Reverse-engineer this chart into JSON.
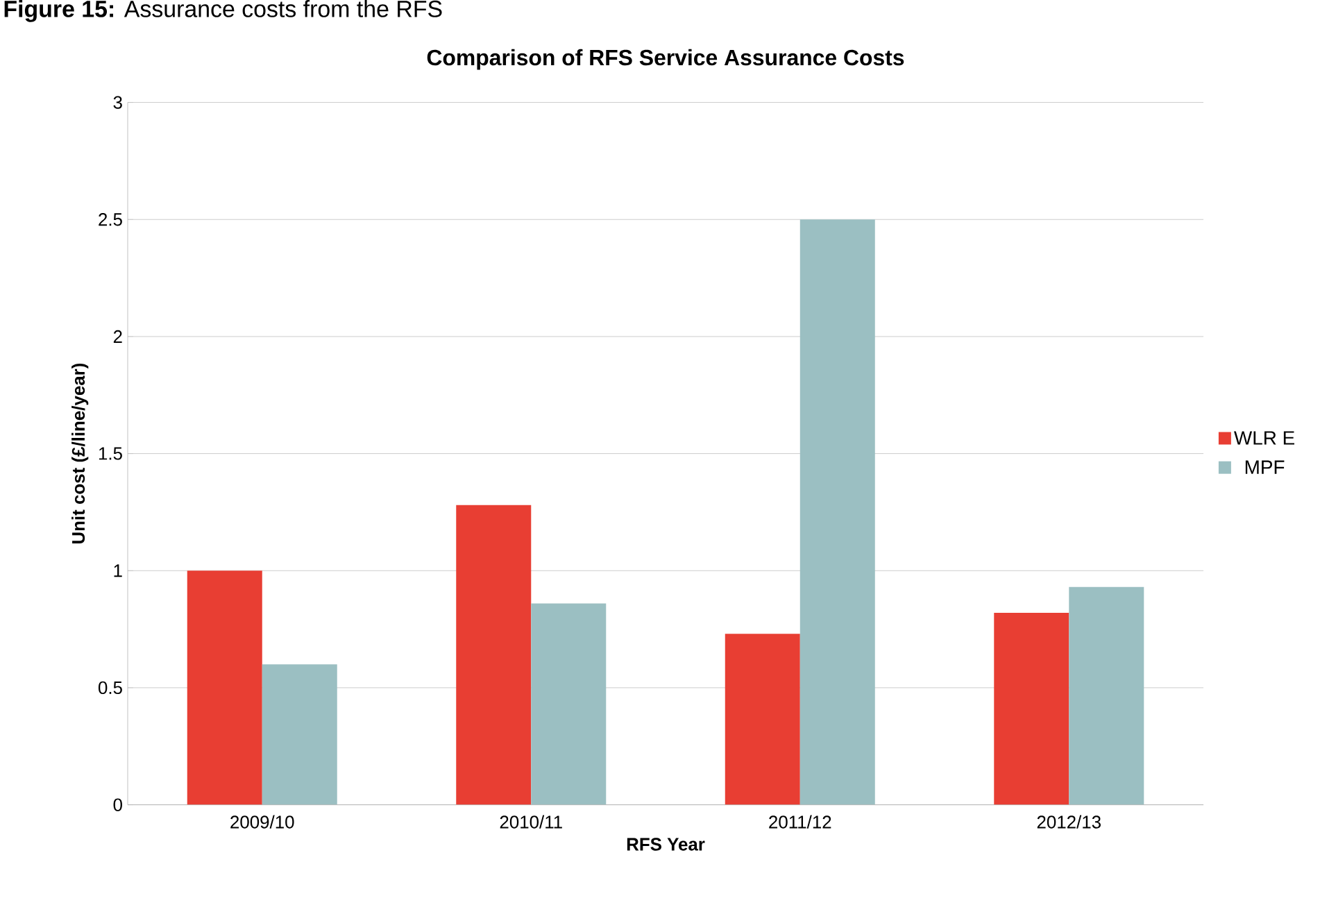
{
  "chart_data": {
    "type": "bar",
    "title": "Comparison of RFS  Service Assurance Costs",
    "annotations": [
      "**Figure 15:** Assurance costs from the RFS"
    ],
    "xlabel": "RFS Year",
    "ylabel": "Unit cost (£/line/year)",
    "categories": [
      "2009/10",
      "2010/11",
      "2011/12",
      "2012/13"
    ],
    "series": [
      {
        "name": "WLR E",
        "color": "#e83e33",
        "values": [
          1.0,
          1.28,
          0.73,
          0.82
        ]
      },
      {
        "name": "MPF",
        "color": "#9bbfc2",
        "values": [
          0.6,
          0.86,
          2.5,
          0.93
        ]
      }
    ],
    "ylim": [
      0,
      3
    ],
    "yticks": [
      0,
      0.5,
      1,
      1.5,
      2,
      2.5,
      3
    ],
    "grid": "y",
    "legend": "right"
  }
}
